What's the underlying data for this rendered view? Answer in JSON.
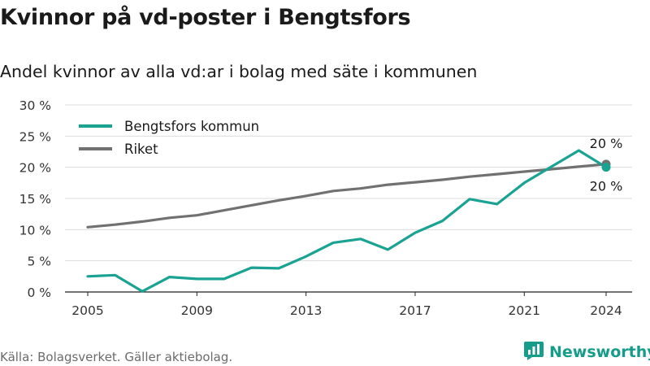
{
  "title": "Kvinnor på vd-poster i Bengtsfors",
  "subtitle": "Andel kvinnor av alla vd:ar i bolag med säte i kommunen",
  "source": "Källa: Bolagsverket. Gäller aktiebolag.",
  "brand": {
    "name": "Newsworthy",
    "icon": "newsworthy-logo-icon",
    "color": "#169c8a"
  },
  "chart_data": {
    "type": "line",
    "title": "Kvinnor på vd-poster i Bengtsfors",
    "subtitle": "Andel kvinnor av alla vd:ar i bolag med säte i kommunen",
    "x": [
      2005,
      2006,
      2007,
      2008,
      2009,
      2010,
      2011,
      2012,
      2013,
      2014,
      2015,
      2016,
      2017,
      2018,
      2019,
      2020,
      2021,
      2022,
      2023,
      2024
    ],
    "xticks": [
      2005,
      2009,
      2013,
      2017,
      2021,
      2024
    ],
    "yticks": [
      {
        "value": 0,
        "label": "0 %"
      },
      {
        "value": 5,
        "label": "5 %"
      },
      {
        "value": 10,
        "label": "10 %"
      },
      {
        "value": 15,
        "label": "15 %"
      },
      {
        "value": 20,
        "label": "20 %"
      },
      {
        "value": 25,
        "label": "25 %"
      },
      {
        "value": 30,
        "label": "30 %"
      }
    ],
    "ylim": [
      0,
      30
    ],
    "grid": true,
    "legend": "top-left",
    "series": [
      {
        "name": "Bengtsfors kommun",
        "color": "#1aa393",
        "values": [
          2.5,
          2.7,
          0.1,
          2.4,
          2.1,
          2.1,
          3.9,
          3.8,
          5.7,
          7.9,
          8.5,
          6.8,
          9.5,
          11.4,
          14.9,
          14.1,
          17.5,
          20.1,
          22.7,
          20.0
        ],
        "end_label": "20 %"
      },
      {
        "name": "Riket",
        "color": "#717171",
        "values": [
          10.4,
          10.8,
          11.3,
          11.9,
          12.3,
          13.1,
          13.9,
          14.7,
          15.4,
          16.2,
          16.6,
          17.2,
          17.6,
          18.0,
          18.5,
          18.9,
          19.3,
          19.7,
          20.1,
          20.5
        ],
        "end_label": "20 %"
      }
    ]
  }
}
